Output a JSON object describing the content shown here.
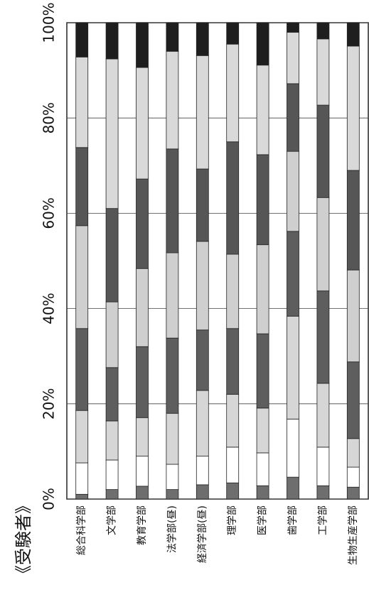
{
  "chart_data": {
    "type": "stacked_bar_100",
    "title": "《受験者》",
    "categories": [
      "総合科学部",
      "文学部",
      "教育学部",
      "法学部(昼)",
      "経済学部(昼)",
      "理学部",
      "医学部",
      "歯学部",
      "工学部",
      "生物生産学部"
    ],
    "series": [
      {
        "color": "#6e6e6e",
        "values": [
          1,
          2,
          2.7,
          2,
          3,
          3.4,
          2.8,
          4.6,
          2.8,
          2.5
        ]
      },
      {
        "color": "#ffffff",
        "values": [
          6.6,
          6.2,
          6.3,
          5.3,
          6,
          7.5,
          6.9,
          12.2,
          8.1,
          4.2
        ]
      },
      {
        "color": "#d6d6d6",
        "values": [
          11,
          8.2,
          8.1,
          10.7,
          13.8,
          11.1,
          9.4,
          21.6,
          13.4,
          6
        ]
      },
      {
        "color": "#5e5e5e",
        "values": [
          17.2,
          11.2,
          14.9,
          15.8,
          12.7,
          13.8,
          15.6,
          17.8,
          19.4,
          16.1
        ]
      },
      {
        "color": "#cfcfcf",
        "values": [
          21.6,
          13.8,
          16.4,
          17.9,
          18.6,
          15.6,
          18.7,
          16.8,
          19.6,
          19.3
        ]
      },
      {
        "color": "#565656",
        "values": [
          16.4,
          19.6,
          18.8,
          21.8,
          15.2,
          23.6,
          18.9,
          14.2,
          19.4,
          20.9
        ]
      },
      {
        "color": "#d9d9d9",
        "values": [
          19,
          31.4,
          23.4,
          20.5,
          23.8,
          20.5,
          18.8,
          10.8,
          13.9,
          26.1
        ]
      },
      {
        "color": "#1e1e1e",
        "values": [
          7.2,
          7.6,
          9.4,
          6,
          6.9,
          4.5,
          8.9,
          2,
          3.4,
          4.9
        ]
      }
    ],
    "ylim": [
      0,
      100
    ],
    "yticks": [
      {
        "value": 0,
        "label": "0%"
      },
      {
        "value": 20,
        "label": "20%"
      },
      {
        "value": 40,
        "label": "40%"
      },
      {
        "value": 60,
        "label": "60%"
      },
      {
        "value": 80,
        "label": "80%"
      },
      {
        "value": 100,
        "label": "100%"
      }
    ],
    "grid": true
  }
}
